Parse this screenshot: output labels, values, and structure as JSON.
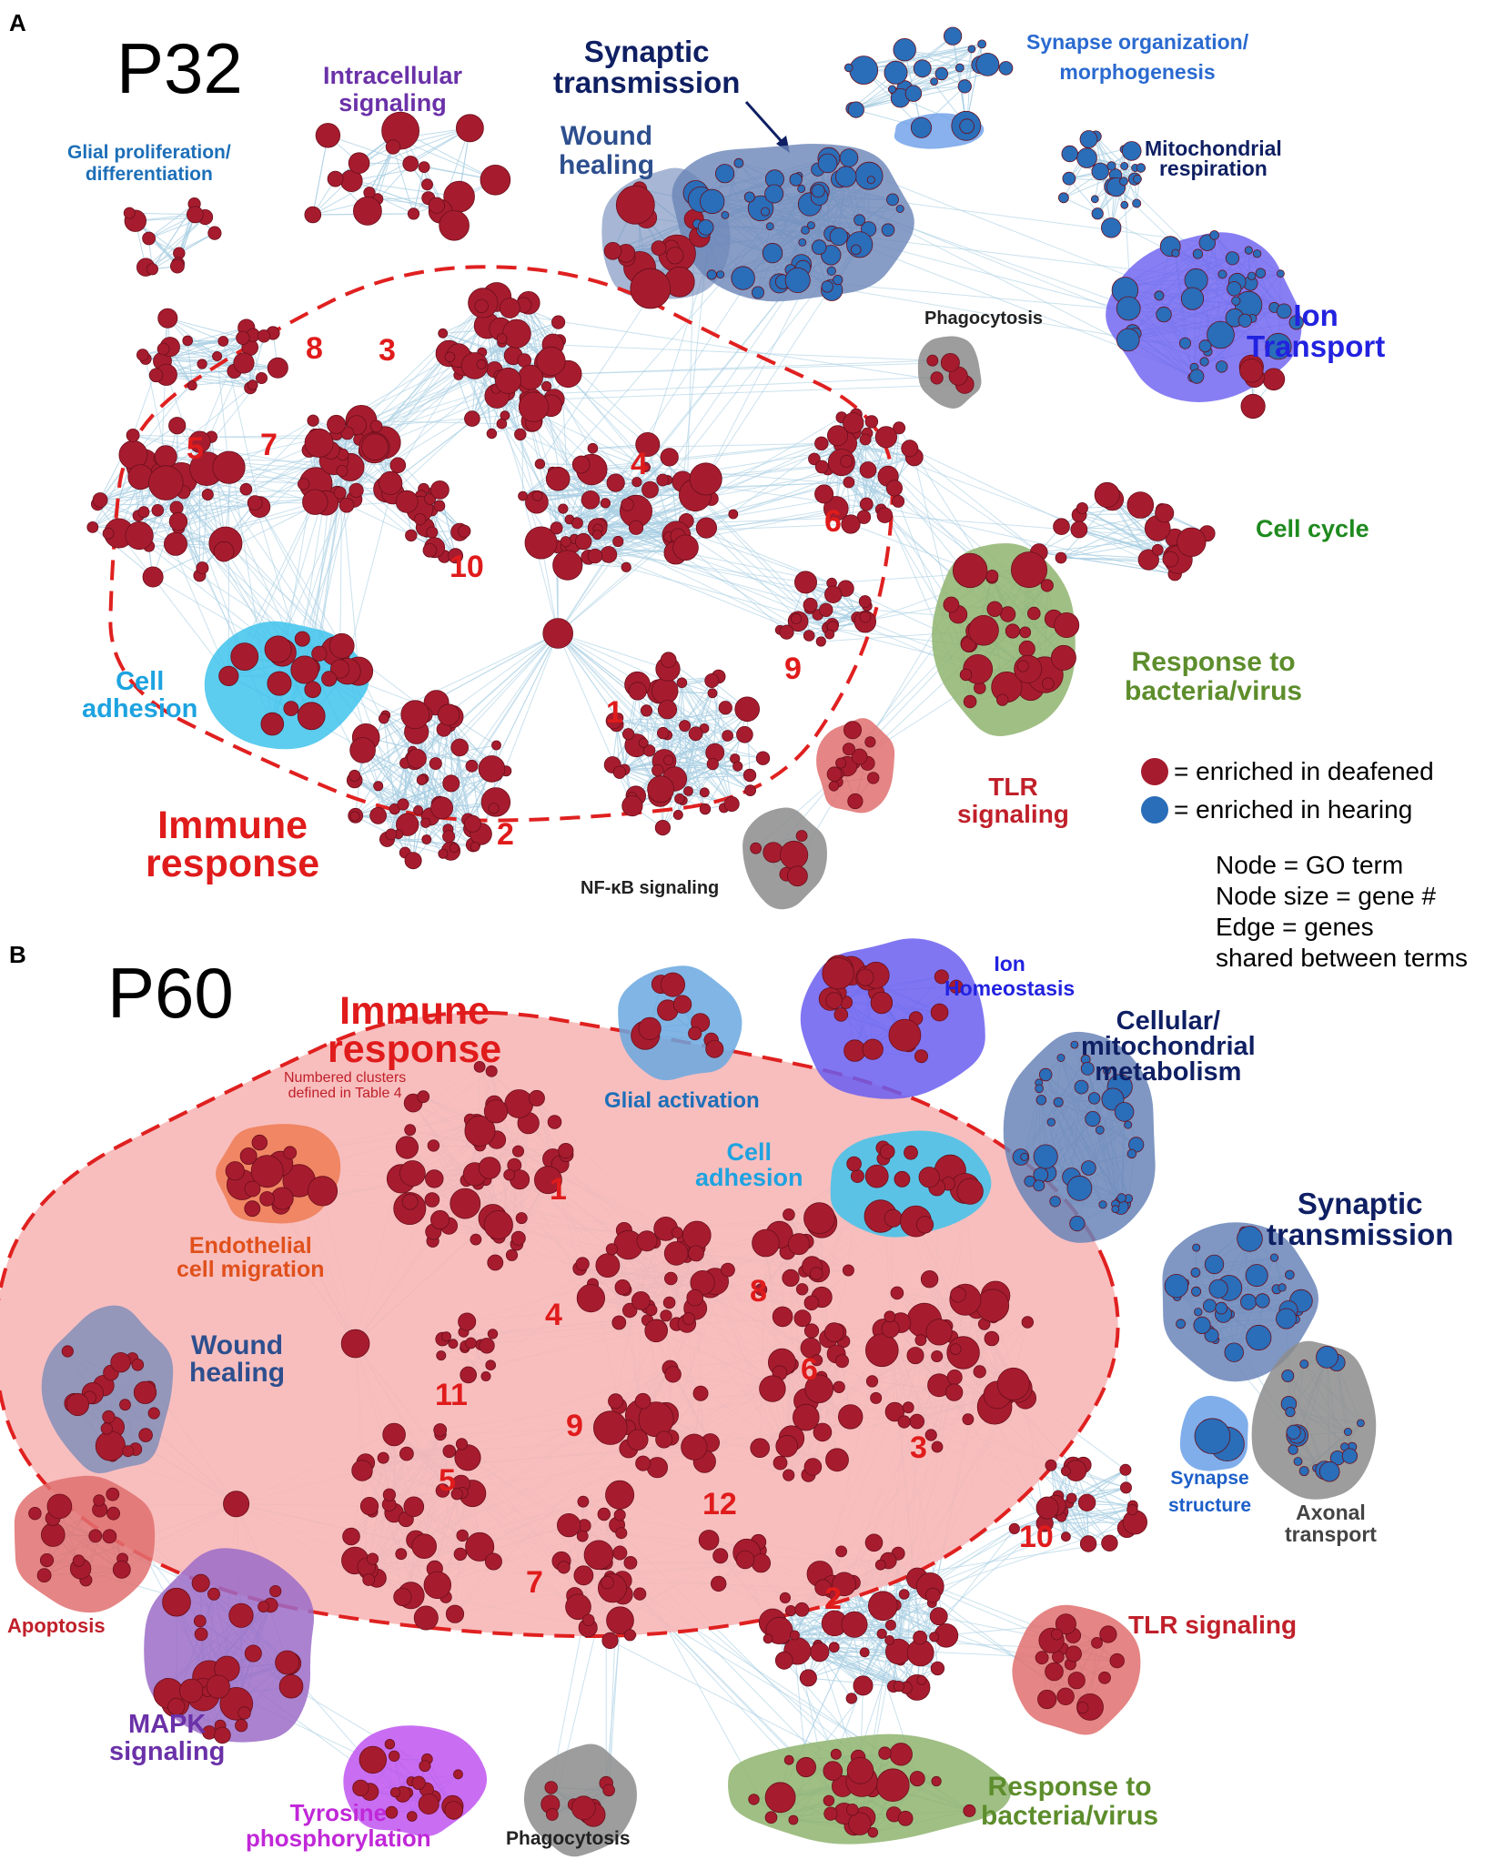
{
  "colors": {
    "immune_node": "#a61c2e",
    "hearing_node": "#2a6db8",
    "edge": "#a9cfe3",
    "immune_outline": "#e02020",
    "immune_fill_p60": "#f7b5b5",
    "immune_label": "#e01b1b",
    "grey_blob": "#8c8c8c",
    "blue_blob": "#6a85b8",
    "violet_blob": "#6a5ef0",
    "green_blob": "#8fb46f",
    "cyan_blob": "#3fc3ec",
    "pink_blob": "#e07070",
    "orange_blob": "#ee7c55",
    "purple_blob": "#9b6cc8",
    "magenta_blob": "#bf55f0"
  },
  "panel_a": {
    "letter": "A",
    "title": "P32",
    "labels": {
      "glial": [
        "Glial proliferation/",
        "differentiation"
      ],
      "intracellular": [
        "Intracellular",
        "signaling"
      ],
      "synaptic": [
        "Synaptic",
        "transmission"
      ],
      "wound": [
        "Wound",
        "healing"
      ],
      "synapse_org": [
        "Synapse organization/",
        "morphogenesis"
      ],
      "mito": [
        "Mitochondrial",
        "respiration"
      ],
      "ion": [
        "Ion",
        "Transport"
      ],
      "phagocytosis": "Phagocytosis",
      "cell_cycle": "Cell cycle",
      "cell_adhesion": [
        "Cell",
        "adhesion"
      ],
      "bacteria": [
        "Response to",
        "bacteria/virus"
      ],
      "tlr": [
        "TLR",
        "signaling"
      ],
      "nfkb": "NF-κB signaling",
      "immune": [
        "Immune",
        "response"
      ]
    },
    "cluster_numbers": [
      "1",
      "2",
      "3",
      "4",
      "5",
      "6",
      "7",
      "8",
      "9",
      "10"
    ]
  },
  "legend": {
    "deafened": "= enriched in deafened",
    "hearing": "= enriched in hearing",
    "notes": [
      "Node = GO term",
      "Node size = gene #",
      "Edge = genes",
      "shared between terms"
    ]
  },
  "panel_b": {
    "letter": "B",
    "title": "P60",
    "labels": {
      "immune": [
        "Immune",
        "response"
      ],
      "immune_note": [
        "Numbered clusters",
        "defined in Table 4"
      ],
      "glial_activation": "Glial activation",
      "ion": [
        "Ion",
        "Homeostasis"
      ],
      "cellular": [
        "Cellular/",
        "mitochondrial",
        "metabolism"
      ],
      "cell_adhesion": [
        "Cell",
        "adhesion"
      ],
      "endothelial": [
        "Endothelial",
        "cell migration"
      ],
      "synaptic": [
        "Synaptic",
        "transmission"
      ],
      "wound": [
        "Wound",
        "healing"
      ],
      "synapse_structure": [
        "Synapse",
        "structure"
      ],
      "axonal": [
        "Axonal",
        "transport"
      ],
      "apoptosis": "Apoptosis",
      "tlr": "TLR signaling",
      "mapk": [
        "MAPK",
        "signaling"
      ],
      "tyrosine": [
        "Tyrosine",
        "phosphorylation"
      ],
      "phagocytosis": "Phagocytosis",
      "bacteria": [
        "Response to",
        "bacteria/virus"
      ]
    },
    "cluster_numbers": [
      "1",
      "2",
      "3",
      "4",
      "5",
      "6",
      "7",
      "8",
      "9",
      "10",
      "11",
      "12"
    ]
  }
}
